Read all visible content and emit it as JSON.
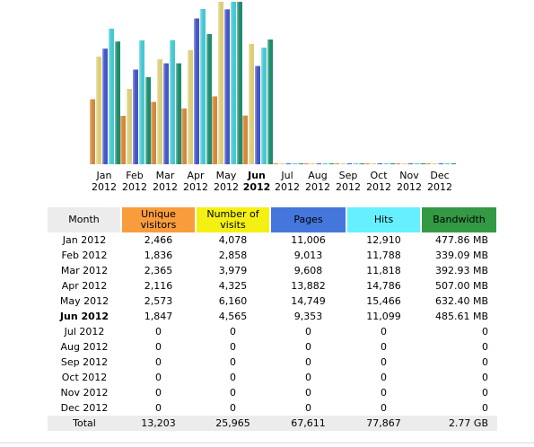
{
  "chart_data": {
    "type": "bar",
    "categories": [
      "Jan 2012",
      "Feb 2012",
      "Mar 2012",
      "Apr 2012",
      "May 2012",
      "Jun 2012",
      "Jul 2012",
      "Aug 2012",
      "Sep 2012",
      "Oct 2012",
      "Nov 2012",
      "Dec 2012"
    ],
    "category_lines": [
      [
        "Jan",
        "2012"
      ],
      [
        "Feb",
        "2012"
      ],
      [
        "Mar",
        "2012"
      ],
      [
        "Apr",
        "2012"
      ],
      [
        "May",
        "2012"
      ],
      [
        "Jun",
        "2012"
      ],
      [
        "Jul",
        "2012"
      ],
      [
        "Aug",
        "2012"
      ],
      [
        "Sep",
        "2012"
      ],
      [
        "Oct",
        "2012"
      ],
      [
        "Nov",
        "2012"
      ],
      [
        "Dec",
        "2012"
      ]
    ],
    "current_index": 5,
    "series": [
      {
        "name": "Unique visitors",
        "values": [
          2466,
          1836,
          2365,
          2116,
          2573,
          1847,
          0,
          0,
          0,
          0,
          0,
          0
        ],
        "color": "#d4883c"
      },
      {
        "name": "Number of visits",
        "values": [
          4078,
          2858,
          3979,
          4325,
          6160,
          4565,
          0,
          0,
          0,
          0,
          0,
          0
        ],
        "color": "#dccd78"
      },
      {
        "name": "Pages",
        "values": [
          11006,
          9013,
          9608,
          13882,
          14749,
          9353,
          0,
          0,
          0,
          0,
          0,
          0
        ],
        "color": "#4655c8"
      },
      {
        "name": "Hits",
        "values": [
          12910,
          11788,
          11818,
          14786,
          15466,
          11099,
          0,
          0,
          0,
          0,
          0,
          0
        ],
        "color": "#46c8d2"
      },
      {
        "name": "Bandwidth",
        "values": [
          477.86,
          339.09,
          392.93,
          507.0,
          632.4,
          485.61,
          0,
          0,
          0,
          0,
          0,
          0
        ],
        "unit": "MB",
        "color": "#1e8c6e"
      }
    ],
    "scale_groups": {
      "visitors_visits": [
        0,
        1
      ],
      "pages_hits": [
        2,
        3
      ],
      "bandwidth": [
        4
      ]
    },
    "legend": "none",
    "grid": false
  },
  "table": {
    "headers": [
      {
        "label": "Month",
        "bg": "#ececec"
      },
      {
        "label": "Unique visitors",
        "bg": "#f99c3c"
      },
      {
        "label": "Number of visits",
        "bg": "#f4f014"
      },
      {
        "label": "Pages",
        "bg": "#4476dc"
      },
      {
        "label": "Hits",
        "bg": "#66f0ff"
      },
      {
        "label": "Bandwidth",
        "bg": "#339944"
      }
    ],
    "rows": [
      [
        "Jan 2012",
        "2,466",
        "4,078",
        "11,006",
        "12,910",
        "477.86 MB"
      ],
      [
        "Feb 2012",
        "1,836",
        "2,858",
        "9,013",
        "11,788",
        "339.09 MB"
      ],
      [
        "Mar 2012",
        "2,365",
        "3,979",
        "9,608",
        "11,818",
        "392.93 MB"
      ],
      [
        "Apr 2012",
        "2,116",
        "4,325",
        "13,882",
        "14,786",
        "507.00 MB"
      ],
      [
        "May 2012",
        "2,573",
        "6,160",
        "14,749",
        "15,466",
        "632.40 MB"
      ],
      [
        "Jun 2012",
        "1,847",
        "4,565",
        "9,353",
        "11,099",
        "485.61 MB"
      ],
      [
        "Jul 2012",
        "0",
        "0",
        "0",
        "0",
        "0"
      ],
      [
        "Aug 2012",
        "0",
        "0",
        "0",
        "0",
        "0"
      ],
      [
        "Sep 2012",
        "0",
        "0",
        "0",
        "0",
        "0"
      ],
      [
        "Oct 2012",
        "0",
        "0",
        "0",
        "0",
        "0"
      ],
      [
        "Nov 2012",
        "0",
        "0",
        "0",
        "0",
        "0"
      ],
      [
        "Dec 2012",
        "0",
        "0",
        "0",
        "0",
        "0"
      ]
    ],
    "current_row": 5,
    "total": [
      "Total",
      "13,203",
      "25,965",
      "67,611",
      "77,867",
      "2.77 GB"
    ]
  }
}
